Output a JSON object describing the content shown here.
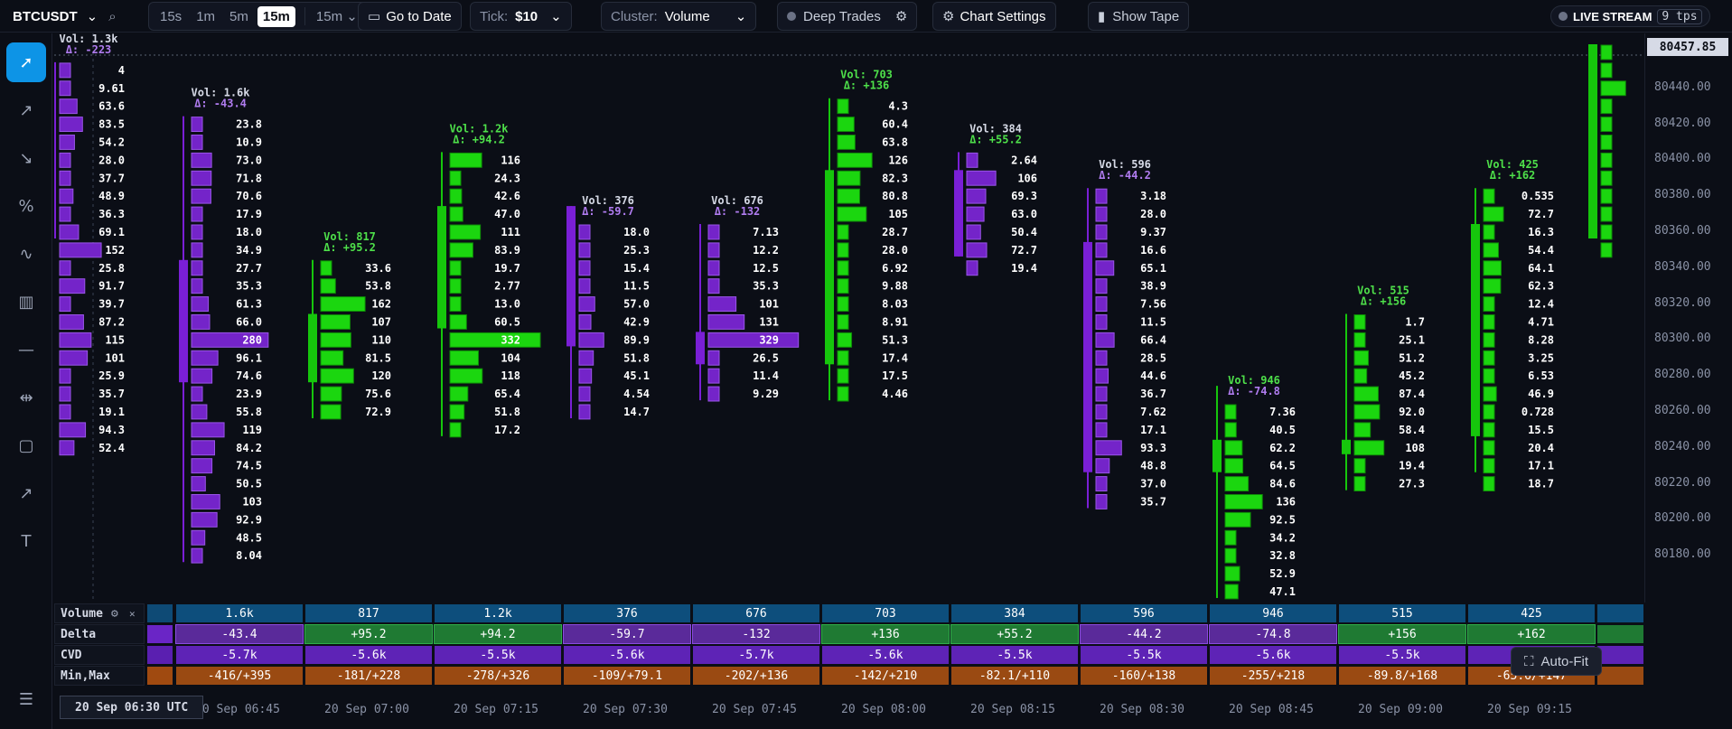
{
  "topbar": {
    "symbol": "BTCUSDT",
    "timeframes": [
      "15s",
      "1m",
      "5m",
      "15m"
    ],
    "active_timeframe": "15m",
    "timeframe_select": "15m",
    "goto_date": "Go to Date",
    "tick_label": "Tick:",
    "tick_value": "$10",
    "cluster_label": "Cluster:",
    "cluster_value": "Volume",
    "deep_trades": "Deep Trades",
    "chart_settings": "Chart Settings",
    "show_tape": "Show Tape",
    "live_stream": "LIVE STREAM",
    "tps": "9 tps"
  },
  "sidebar": {
    "tools": [
      "cursor-icon",
      "trend-up-icon",
      "trend-down-icon",
      "percent-icon",
      "pulse-icon",
      "bar-chart-icon",
      "horizontal-line-icon",
      "measure-icon",
      "rectangle-icon",
      "arrow-icon",
      "text-icon"
    ],
    "bottom": "settings-sliders-icon"
  },
  "price_axis": {
    "ticks": [
      "80440.00",
      "80420.00",
      "80400.00",
      "80380.00",
      "80360.00",
      "80340.00",
      "80320.00",
      "80300.00",
      "80280.00",
      "80260.00",
      "80240.00",
      "80220.00",
      "80200.00",
      "80180.00"
    ],
    "last_price": "80457.85"
  },
  "colors": {
    "bull": "#16c60c",
    "bear": "#7a1fd6",
    "bull_bar": "#1bd60f",
    "bear_bar": "#7424c9"
  },
  "chart_data": {
    "type": "footprint",
    "price_top": 80460,
    "price_step": 10,
    "candles": [
      {
        "vol": "Vol: 1.3k",
        "delta": "Δ: -223",
        "bull": false,
        "start_price": 80450,
        "bar_x_offset": false,
        "levels": [
          "4",
          "9.61",
          "63.6",
          "83.5",
          "54.2",
          "28.0",
          "37.7",
          "48.9",
          "36.3",
          "69.1",
          "152",
          "25.8",
          "91.7",
          "39.7",
          "87.2",
          "115",
          "101",
          "25.9",
          "35.7",
          "19.1",
          "94.3",
          "52.4"
        ],
        "levels_num": [
          4,
          9.61,
          63.6,
          83.5,
          54.2,
          28.0,
          37.7,
          48.9,
          36.3,
          69.1,
          152,
          25.8,
          91.7,
          39.7,
          87.2,
          115,
          101,
          25.9,
          35.7,
          19.1,
          94.3,
          52.4
        ],
        "body": [
          80450,
          80360
        ],
        "wick": [
          80450,
          80360
        ]
      },
      {
        "vol": "Vol: 1.6k",
        "delta": "Δ: -43.4",
        "bull": false,
        "start_price": 80420,
        "levels": [
          "23.8",
          "10.9",
          "73.0",
          "71.8",
          "70.6",
          "17.9",
          "18.0",
          "34.9",
          "27.7",
          "35.3",
          "61.3",
          "66.0",
          "280",
          "96.1",
          "74.6",
          "23.9",
          "55.8",
          "119",
          "84.2",
          "74.5",
          "50.5",
          "103",
          "92.9",
          "48.5",
          "8.04"
        ],
        "levels_num": [
          23.8,
          10.9,
          73.0,
          71.8,
          70.6,
          17.9,
          18.0,
          34.9,
          27.7,
          35.3,
          61.3,
          66.0,
          280,
          96.1,
          74.6,
          23.9,
          55.8,
          119,
          84.2,
          74.5,
          50.5,
          103,
          92.9,
          48.5,
          8.04
        ],
        "body": [
          80340,
          80280
        ],
        "wick": [
          80420,
          80180
        ]
      },
      {
        "vol": "Vol: 817",
        "delta": "Δ: +95.2",
        "bull": true,
        "start_price": 80340,
        "levels": [
          "33.6",
          "53.8",
          "162",
          "107",
          "110",
          "81.5",
          "120",
          "75.6",
          "72.9"
        ],
        "levels_num": [
          33.6,
          53.8,
          162,
          107,
          110,
          81.5,
          120,
          75.6,
          72.9
        ],
        "body": [
          80310,
          80280
        ],
        "wick": [
          80340,
          80260
        ]
      },
      {
        "vol": "Vol: 1.2k",
        "delta": "Δ: +94.2",
        "bull": true,
        "start_price": 80400,
        "levels": [
          "116",
          "24.3",
          "42.6",
          "47.0",
          "111",
          "83.9",
          "19.7",
          "2.77",
          "13.0",
          "60.5",
          "332",
          "104",
          "118",
          "65.4",
          "51.8",
          "17.2"
        ],
        "levels_num": [
          116,
          24.3,
          42.6,
          47.0,
          111,
          83.9,
          19.7,
          2.77,
          13.0,
          60.5,
          332,
          104,
          118,
          65.4,
          51.8,
          17.2
        ],
        "body": [
          80370,
          80310
        ],
        "wick": [
          80400,
          80250
        ]
      },
      {
        "vol": "Vol: 376",
        "delta": "Δ: -59.7",
        "bull": false,
        "start_price": 80360,
        "levels": [
          "18.0",
          "25.3",
          "15.4",
          "11.5",
          "57.0",
          "42.9",
          "89.9",
          "51.8",
          "45.1",
          "4.54",
          "14.7"
        ],
        "levels_num": [
          18.0,
          25.3,
          15.4,
          11.5,
          57.0,
          42.9,
          89.9,
          51.8,
          45.1,
          4.54,
          14.7
        ],
        "body": [
          80370,
          80300
        ],
        "wick": [
          80370,
          80260
        ]
      },
      {
        "vol": "Vol: 676",
        "delta": "Δ: -132",
        "bull": false,
        "start_price": 80360,
        "levels": [
          "7.13",
          "12.2",
          "12.5",
          "35.3",
          "101",
          "131",
          "329",
          "26.5",
          "11.4",
          "9.29"
        ],
        "levels_num": [
          7.13,
          12.2,
          12.5,
          35.3,
          101,
          131,
          329,
          26.5,
          11.4,
          9.29
        ],
        "body": [
          80300,
          80290
        ],
        "wick": [
          80360,
          80270
        ]
      },
      {
        "vol": "Vol: 703",
        "delta": "Δ: +136",
        "bull": true,
        "start_price": 80430,
        "levels": [
          "4.3",
          "60.4",
          "63.8",
          "126",
          "82.3",
          "80.8",
          "105",
          "28.7",
          "28.0",
          "6.92",
          "9.88",
          "8.03",
          "8.91",
          "51.3",
          "17.4",
          "17.5",
          "4.46"
        ],
        "levels_num": [
          4.3,
          60.4,
          63.8,
          126,
          82.3,
          80.8,
          105,
          28.7,
          28.0,
          6.92,
          9.88,
          8.03,
          8.91,
          51.3,
          17.4,
          17.5,
          4.46
        ],
        "body": [
          80390,
          80290
        ],
        "wick": [
          80430,
          80270
        ]
      },
      {
        "vol": "Vol: 384",
        "delta": "Δ: +55.2",
        "bull": false,
        "start_price": 80400,
        "levels": [
          "2.64",
          "106",
          "69.3",
          "63.0",
          "50.4",
          "72.7",
          "19.4"
        ],
        "levels_num": [
          2.64,
          106,
          69.3,
          63.0,
          50.4,
          72.7,
          19.4
        ],
        "body": [
          80390,
          80350
        ],
        "wick": [
          80400,
          80350
        ]
      },
      {
        "vol": "Vol: 596",
        "delta": "Δ: -44.2",
        "bull": false,
        "start_price": 80380,
        "levels": [
          "3.18",
          "28.0",
          "9.37",
          "16.6",
          "65.1",
          "38.9",
          "7.56",
          "11.5",
          "66.4",
          "28.5",
          "44.6",
          "36.7",
          "7.62",
          "17.1",
          "93.3",
          "48.8",
          "37.0",
          "35.7"
        ],
        "levels_num": [
          3.18,
          28.0,
          9.37,
          16.6,
          65.1,
          38.9,
          7.56,
          11.5,
          66.4,
          28.5,
          44.6,
          36.7,
          7.62,
          17.1,
          93.3,
          48.8,
          37.0,
          35.7
        ],
        "body": [
          80350,
          80230
        ],
        "wick": [
          80380,
          80210
        ]
      },
      {
        "vol": "Vol: 946",
        "delta": "Δ: -74.8",
        "bull": true,
        "start_price": 80260,
        "levels": [
          "7.36",
          "40.5",
          "62.2",
          "64.5",
          "84.6",
          "136",
          "92.5",
          "34.2",
          "32.8",
          "52.9",
          "47.1"
        ],
        "levels_num": [
          7.36,
          40.5,
          62.2,
          64.5,
          84.6,
          136,
          92.5,
          34.2,
          32.8,
          52.9,
          47.1
        ],
        "body": [
          80240,
          80230
        ],
        "wick": [
          80270,
          80160
        ]
      },
      {
        "vol": "Vol: 515",
        "delta": "Δ: +156",
        "bull": true,
        "start_price": 80310,
        "levels": [
          "1.7",
          "25.1",
          "51.2",
          "45.2",
          "87.4",
          "92.0",
          "58.4",
          "108",
          "19.4",
          "27.3"
        ],
        "levels_num": [
          1.7,
          25.1,
          51.2,
          45.2,
          87.4,
          92.0,
          58.4,
          108,
          19.4,
          27.3
        ],
        "body": [
          80240,
          80240
        ],
        "wick": [
          80310,
          80220
        ]
      },
      {
        "vol": "Vol: 425",
        "delta": "Δ: +162",
        "bull": true,
        "start_price": 80380,
        "levels": [
          "0.535",
          "72.7",
          "16.3",
          "54.4",
          "64.1",
          "62.3",
          "12.4",
          "4.71",
          "8.28",
          "3.25",
          "6.53",
          "46.9",
          "0.728",
          "15.5",
          "20.4",
          "17.1",
          "18.7"
        ],
        "levels_num": [
          0.535,
          72.7,
          16.3,
          54.4,
          64.1,
          62.3,
          12.4,
          4.71,
          8.28,
          3.25,
          6.53,
          46.9,
          0.728,
          15.5,
          20.4,
          17.1,
          18.7
        ],
        "body": [
          80360,
          80250
        ],
        "wick": [
          80380,
          80230
        ]
      },
      {
        "vol": "",
        "delta": "",
        "bull": true,
        "start_price": 80460,
        "levels": [
          "",
          "",
          "",
          "",
          "",
          "",
          "",
          "",
          "",
          "",
          "",
          ""
        ],
        "levels_num": [
          10,
          20,
          90,
          5,
          6,
          4,
          7,
          5,
          6,
          5,
          4,
          8
        ],
        "body": [
          80460,
          80360
        ],
        "wick": [
          80460,
          80360
        ]
      }
    ]
  },
  "stats": {
    "rows": [
      {
        "label": "Volume",
        "cells": [
          "1.6k",
          "817",
          "1.2k",
          "376",
          "676",
          "703",
          "384",
          "596",
          "946",
          "515",
          "425"
        ]
      },
      {
        "label": "Delta",
        "cells": [
          "-43.4",
          "+95.2",
          "+94.2",
          "-59.7",
          "-132",
          "+136",
          "+55.2",
          "-44.2",
          "-74.8",
          "+156",
          "+162"
        ]
      },
      {
        "label": "CVD",
        "cells": [
          "-5.7k",
          "-5.6k",
          "-5.5k",
          "-5.6k",
          "-5.7k",
          "-5.6k",
          "-5.5k",
          "-5.5k",
          "-5.6k",
          "-5.5k",
          "-5.4k"
        ]
      },
      {
        "label": "Min,Max",
        "cells": [
          "-416/+395",
          "-181/+228",
          "-278/+326",
          "-109/+79.1",
          "-202/+136",
          "-142/+210",
          "-82.1/+110",
          "-160/+138",
          "-255/+218",
          "-89.8/+168",
          "-65.6/+147"
        ]
      }
    ]
  },
  "time_axis": {
    "current": "20 Sep 06:30 UTC",
    "ticks": [
      "20 Sep 06:45",
      "20 Sep 07:00",
      "20 Sep 07:15",
      "20 Sep 07:30",
      "20 Sep 07:45",
      "20 Sep 08:00",
      "20 Sep 08:15",
      "20 Sep 08:30",
      "20 Sep 08:45",
      "20 Sep 09:00",
      "20 Sep 09:15"
    ]
  },
  "autofit": "Auto-Fit"
}
